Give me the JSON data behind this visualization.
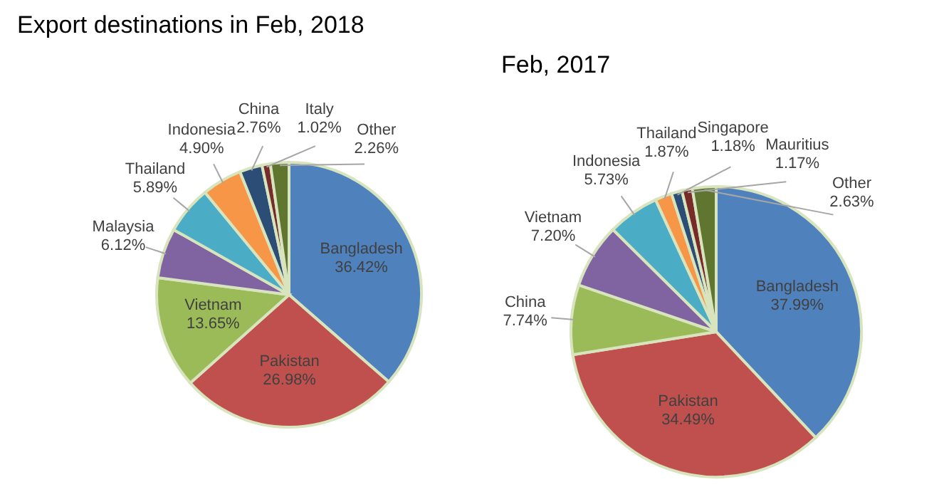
{
  "chart_data": [
    {
      "type": "pie",
      "title": "Export destinations in Feb, 2018",
      "categories": [
        "Bangladesh",
        "Pakistan",
        "Vietnam",
        "Malaysia",
        "Thailand",
        "Indonesia",
        "China",
        "Italy",
        "Other"
      ],
      "values": [
        36.42,
        26.98,
        13.65,
        6.12,
        5.89,
        4.9,
        2.76,
        1.02,
        2.26
      ],
      "value_labels": [
        "36.42%",
        "26.98%",
        "13.65%",
        "6.12%",
        "5.89%",
        "4.90%",
        "2.76%",
        "1.02%",
        "2.26%"
      ],
      "colors": [
        "#4f81bd",
        "#c0504d",
        "#9bbb59",
        "#8064a2",
        "#4bacc6",
        "#f79646",
        "#2c4d75",
        "#772c2a",
        "#5f7530"
      ]
    },
    {
      "type": "pie",
      "title": "Feb, 2017",
      "categories": [
        "Bangladesh",
        "Pakistan",
        "China",
        "Vietnam",
        "Indonesia",
        "Thailand",
        "Singapore",
        "Mauritius",
        "Other"
      ],
      "values": [
        37.99,
        34.49,
        7.74,
        7.2,
        5.73,
        1.87,
        1.18,
        1.17,
        2.63
      ],
      "value_labels": [
        "37.99%",
        "34.49%",
        "7.74%",
        "7.20%",
        "5.73%",
        "1.87%",
        "1.18%",
        "1.17%",
        "2.63%"
      ],
      "colors": [
        "#4f81bd",
        "#c0504d",
        "#9bbb59",
        "#8064a2",
        "#4bacc6",
        "#f79646",
        "#2c4d75",
        "#772c2a",
        "#5f7530"
      ]
    }
  ]
}
